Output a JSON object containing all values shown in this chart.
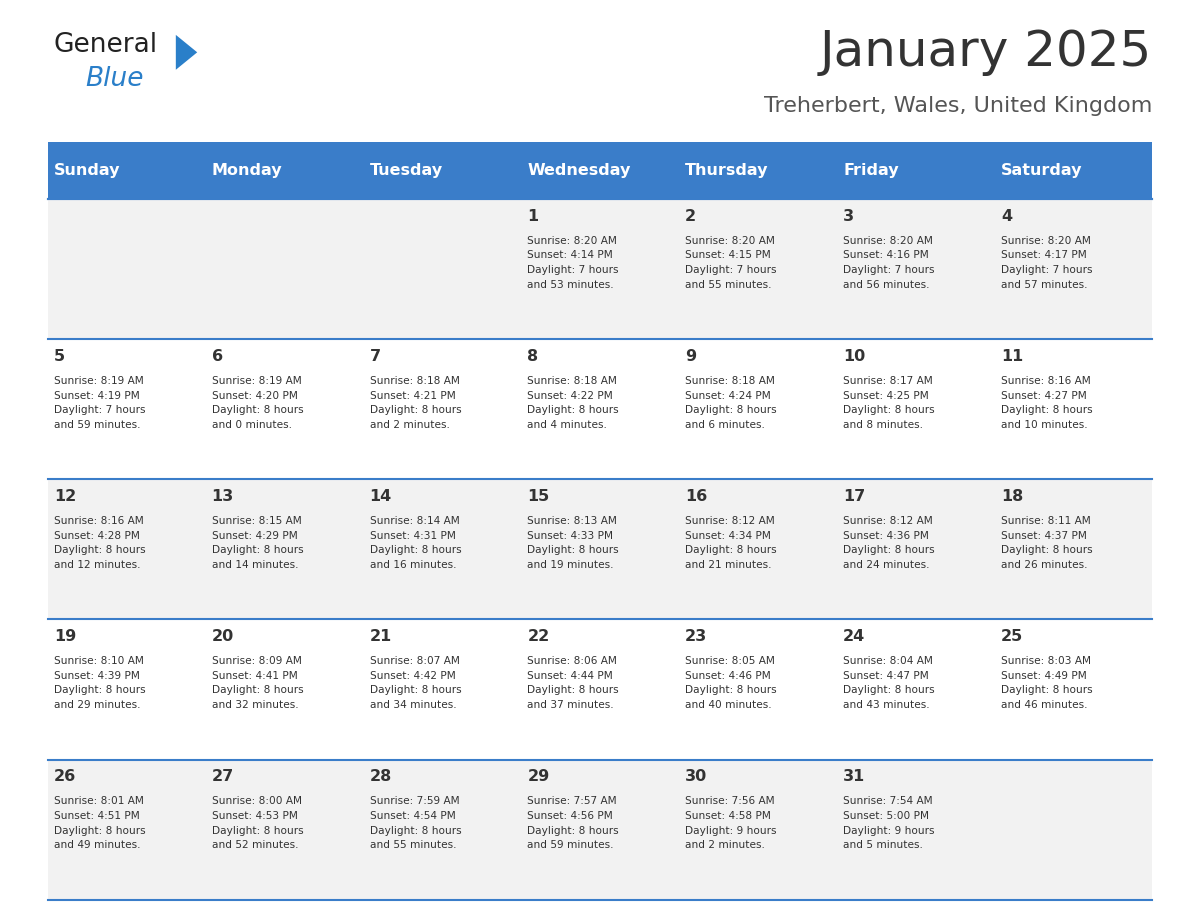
{
  "title": "January 2025",
  "subtitle": "Treherbert, Wales, United Kingdom",
  "days_of_week": [
    "Sunday",
    "Monday",
    "Tuesday",
    "Wednesday",
    "Thursday",
    "Friday",
    "Saturday"
  ],
  "header_bg": "#3A7DC9",
  "header_text": "#FFFFFF",
  "row_bg_odd": "#F2F2F2",
  "row_bg_even": "#FFFFFF",
  "cell_text_color": "#333333",
  "day_num_color": "#333333",
  "grid_line_color": "#3A7DC9",
  "title_color": "#333333",
  "subtitle_color": "#555555",
  "logo_general_color": "#222222",
  "logo_blue_color": "#2A7FC9",
  "weeks": [
    [
      {
        "day": null,
        "info": null
      },
      {
        "day": null,
        "info": null
      },
      {
        "day": null,
        "info": null
      },
      {
        "day": 1,
        "info": "Sunrise: 8:20 AM\nSunset: 4:14 PM\nDaylight: 7 hours\nand 53 minutes."
      },
      {
        "day": 2,
        "info": "Sunrise: 8:20 AM\nSunset: 4:15 PM\nDaylight: 7 hours\nand 55 minutes."
      },
      {
        "day": 3,
        "info": "Sunrise: 8:20 AM\nSunset: 4:16 PM\nDaylight: 7 hours\nand 56 minutes."
      },
      {
        "day": 4,
        "info": "Sunrise: 8:20 AM\nSunset: 4:17 PM\nDaylight: 7 hours\nand 57 minutes."
      }
    ],
    [
      {
        "day": 5,
        "info": "Sunrise: 8:19 AM\nSunset: 4:19 PM\nDaylight: 7 hours\nand 59 minutes."
      },
      {
        "day": 6,
        "info": "Sunrise: 8:19 AM\nSunset: 4:20 PM\nDaylight: 8 hours\nand 0 minutes."
      },
      {
        "day": 7,
        "info": "Sunrise: 8:18 AM\nSunset: 4:21 PM\nDaylight: 8 hours\nand 2 minutes."
      },
      {
        "day": 8,
        "info": "Sunrise: 8:18 AM\nSunset: 4:22 PM\nDaylight: 8 hours\nand 4 minutes."
      },
      {
        "day": 9,
        "info": "Sunrise: 8:18 AM\nSunset: 4:24 PM\nDaylight: 8 hours\nand 6 minutes."
      },
      {
        "day": 10,
        "info": "Sunrise: 8:17 AM\nSunset: 4:25 PM\nDaylight: 8 hours\nand 8 minutes."
      },
      {
        "day": 11,
        "info": "Sunrise: 8:16 AM\nSunset: 4:27 PM\nDaylight: 8 hours\nand 10 minutes."
      }
    ],
    [
      {
        "day": 12,
        "info": "Sunrise: 8:16 AM\nSunset: 4:28 PM\nDaylight: 8 hours\nand 12 minutes."
      },
      {
        "day": 13,
        "info": "Sunrise: 8:15 AM\nSunset: 4:29 PM\nDaylight: 8 hours\nand 14 minutes."
      },
      {
        "day": 14,
        "info": "Sunrise: 8:14 AM\nSunset: 4:31 PM\nDaylight: 8 hours\nand 16 minutes."
      },
      {
        "day": 15,
        "info": "Sunrise: 8:13 AM\nSunset: 4:33 PM\nDaylight: 8 hours\nand 19 minutes."
      },
      {
        "day": 16,
        "info": "Sunrise: 8:12 AM\nSunset: 4:34 PM\nDaylight: 8 hours\nand 21 minutes."
      },
      {
        "day": 17,
        "info": "Sunrise: 8:12 AM\nSunset: 4:36 PM\nDaylight: 8 hours\nand 24 minutes."
      },
      {
        "day": 18,
        "info": "Sunrise: 8:11 AM\nSunset: 4:37 PM\nDaylight: 8 hours\nand 26 minutes."
      }
    ],
    [
      {
        "day": 19,
        "info": "Sunrise: 8:10 AM\nSunset: 4:39 PM\nDaylight: 8 hours\nand 29 minutes."
      },
      {
        "day": 20,
        "info": "Sunrise: 8:09 AM\nSunset: 4:41 PM\nDaylight: 8 hours\nand 32 minutes."
      },
      {
        "day": 21,
        "info": "Sunrise: 8:07 AM\nSunset: 4:42 PM\nDaylight: 8 hours\nand 34 minutes."
      },
      {
        "day": 22,
        "info": "Sunrise: 8:06 AM\nSunset: 4:44 PM\nDaylight: 8 hours\nand 37 minutes."
      },
      {
        "day": 23,
        "info": "Sunrise: 8:05 AM\nSunset: 4:46 PM\nDaylight: 8 hours\nand 40 minutes."
      },
      {
        "day": 24,
        "info": "Sunrise: 8:04 AM\nSunset: 4:47 PM\nDaylight: 8 hours\nand 43 minutes."
      },
      {
        "day": 25,
        "info": "Sunrise: 8:03 AM\nSunset: 4:49 PM\nDaylight: 8 hours\nand 46 minutes."
      }
    ],
    [
      {
        "day": 26,
        "info": "Sunrise: 8:01 AM\nSunset: 4:51 PM\nDaylight: 8 hours\nand 49 minutes."
      },
      {
        "day": 27,
        "info": "Sunrise: 8:00 AM\nSunset: 4:53 PM\nDaylight: 8 hours\nand 52 minutes."
      },
      {
        "day": 28,
        "info": "Sunrise: 7:59 AM\nSunset: 4:54 PM\nDaylight: 8 hours\nand 55 minutes."
      },
      {
        "day": 29,
        "info": "Sunrise: 7:57 AM\nSunset: 4:56 PM\nDaylight: 8 hours\nand 59 minutes."
      },
      {
        "day": 30,
        "info": "Sunrise: 7:56 AM\nSunset: 4:58 PM\nDaylight: 9 hours\nand 2 minutes."
      },
      {
        "day": 31,
        "info": "Sunrise: 7:54 AM\nSunset: 5:00 PM\nDaylight: 9 hours\nand 5 minutes."
      },
      {
        "day": null,
        "info": null
      }
    ]
  ]
}
